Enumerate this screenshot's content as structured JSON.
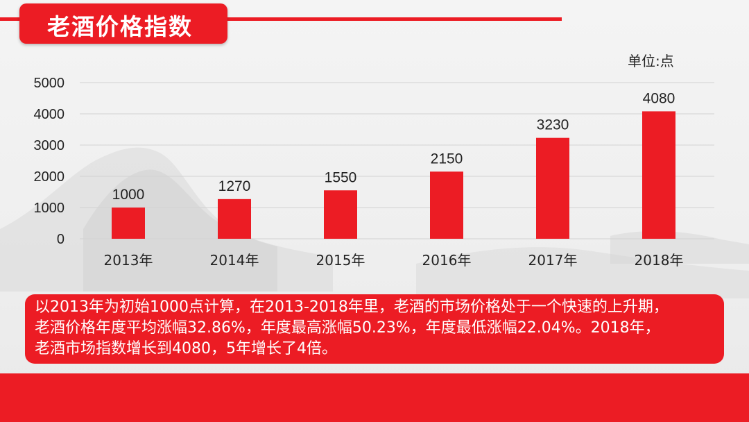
{
  "header": {
    "title": "老酒价格指数"
  },
  "unit_label": "单位:点",
  "summary": {
    "line1": "以2013年为初始1000点计算，在2013-2018年里，老酒的市场价格处于一个快速的上升期，",
    "line2": "老酒价格年度平均涨幅32.86%，年度最高涨幅50.23%，年度最低涨幅22.04%。2018年，",
    "line3": "老酒市场指数增长到4080，5年增长了4倍。"
  },
  "colors": {
    "accent": "#ec1c24",
    "text": "#222222",
    "grid": "#d2d2d2"
  },
  "chart_data": {
    "type": "bar",
    "categories": [
      "2013年",
      "2014年",
      "2015年",
      "2016年",
      "2017年",
      "2018年"
    ],
    "values": [
      1000,
      1270,
      1550,
      2150,
      3230,
      4080
    ],
    "y_ticks": [
      "0",
      "1000",
      "2000",
      "3000",
      "4000",
      "5000"
    ],
    "ylim": [
      0,
      5000
    ],
    "grid": true,
    "data_labels": true
  }
}
